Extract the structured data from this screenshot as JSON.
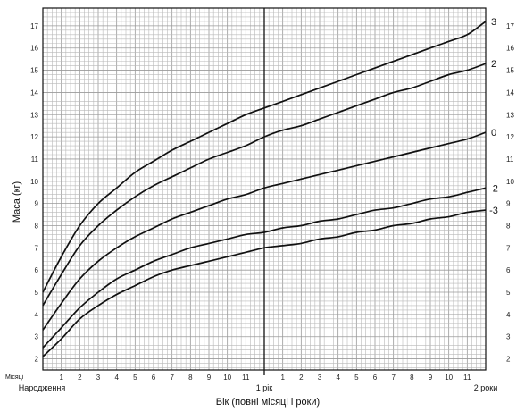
{
  "chart_data": {
    "type": "line",
    "ylabel": "Маса (кг)",
    "xlabel": "Вік (повні місяці і роки)",
    "x_corner_label": "Місяці",
    "x_start_label": "Народження",
    "year_labels": [
      {
        "month": 12,
        "label": "1 рік"
      },
      {
        "month": 24,
        "label": "2 роки"
      }
    ],
    "month_tick_labels": [
      "1",
      "2",
      "3",
      "4",
      "5",
      "6",
      "7",
      "8",
      "9",
      "10",
      "11",
      "1",
      "2",
      "3",
      "4",
      "5",
      "6",
      "7",
      "8",
      "9",
      "10",
      "11"
    ],
    "xlim": [
      0,
      24
    ],
    "ylim": [
      1.5,
      17.8
    ],
    "y_ticks": [
      2,
      3,
      4,
      5,
      6,
      7,
      8,
      9,
      10,
      11,
      12,
      13,
      14,
      15,
      16,
      17
    ],
    "grid": true,
    "x_months": [
      0,
      1,
      2,
      3,
      4,
      5,
      6,
      7,
      8,
      9,
      10,
      11,
      12,
      13,
      14,
      15,
      16,
      17,
      18,
      19,
      20,
      21,
      22,
      23,
      24
    ],
    "series": [
      {
        "name": "3",
        "values": [
          5.0,
          6.6,
          8.0,
          9.0,
          9.7,
          10.4,
          10.9,
          11.4,
          11.8,
          12.2,
          12.6,
          13.0,
          13.3,
          13.6,
          13.9,
          14.2,
          14.5,
          14.8,
          15.1,
          15.4,
          15.7,
          16.0,
          16.3,
          16.6,
          17.2
        ]
      },
      {
        "name": "2",
        "values": [
          4.4,
          5.8,
          7.1,
          8.0,
          8.7,
          9.3,
          9.8,
          10.2,
          10.6,
          11.0,
          11.3,
          11.6,
          12.0,
          12.3,
          12.5,
          12.8,
          13.1,
          13.4,
          13.7,
          14.0,
          14.2,
          14.5,
          14.8,
          15.0,
          15.3
        ]
      },
      {
        "name": "0",
        "values": [
          3.3,
          4.5,
          5.6,
          6.4,
          7.0,
          7.5,
          7.9,
          8.3,
          8.6,
          8.9,
          9.2,
          9.4,
          9.7,
          9.9,
          10.1,
          10.3,
          10.5,
          10.7,
          10.9,
          11.1,
          11.3,
          11.5,
          11.7,
          11.9,
          12.2
        ]
      },
      {
        "name": "-2",
        "values": [
          2.5,
          3.4,
          4.3,
          5.0,
          5.6,
          6.0,
          6.4,
          6.7,
          7.0,
          7.2,
          7.4,
          7.6,
          7.7,
          7.9,
          8.0,
          8.2,
          8.3,
          8.5,
          8.7,
          8.8,
          9.0,
          9.2,
          9.3,
          9.5,
          9.7
        ]
      },
      {
        "name": "-3",
        "values": [
          2.1,
          2.9,
          3.8,
          4.4,
          4.9,
          5.3,
          5.7,
          6.0,
          6.2,
          6.4,
          6.6,
          6.8,
          7.0,
          7.1,
          7.2,
          7.4,
          7.5,
          7.7,
          7.8,
          8.0,
          8.1,
          8.3,
          8.4,
          8.6,
          8.7
        ]
      }
    ]
  }
}
